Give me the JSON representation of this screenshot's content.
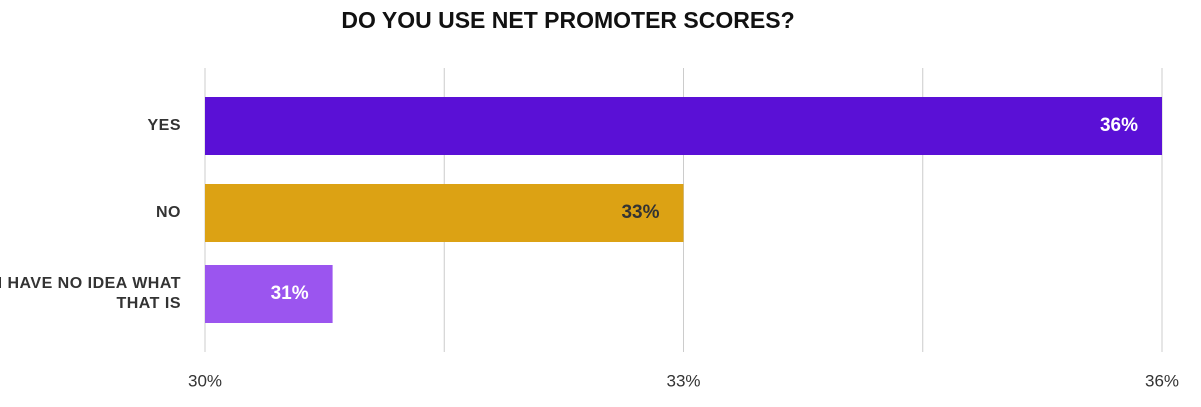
{
  "chart_data": {
    "type": "barh",
    "title": "DO YOU USE NET PROMOTER SCORES?",
    "categories": [
      "YES",
      "NO",
      "I HAVE NO IDEA WHAT THAT IS"
    ],
    "values": [
      36,
      33,
      30.8
    ],
    "value_labels": [
      "36%",
      "33%",
      "31%"
    ],
    "colors": [
      "#5a10d6",
      "#dca214",
      "#9b55ef"
    ],
    "value_label_colors": [
      "#ffffff",
      "#333333",
      "#ffffff"
    ],
    "xlim": [
      30,
      36
    ],
    "xticks": [
      {
        "value": 30,
        "label": "30%"
      },
      {
        "value": 33,
        "label": "33%"
      },
      {
        "value": 36,
        "label": "36%"
      }
    ],
    "xgrid": [
      30,
      31.5,
      33,
      34.5,
      36
    ],
    "grid": true
  }
}
